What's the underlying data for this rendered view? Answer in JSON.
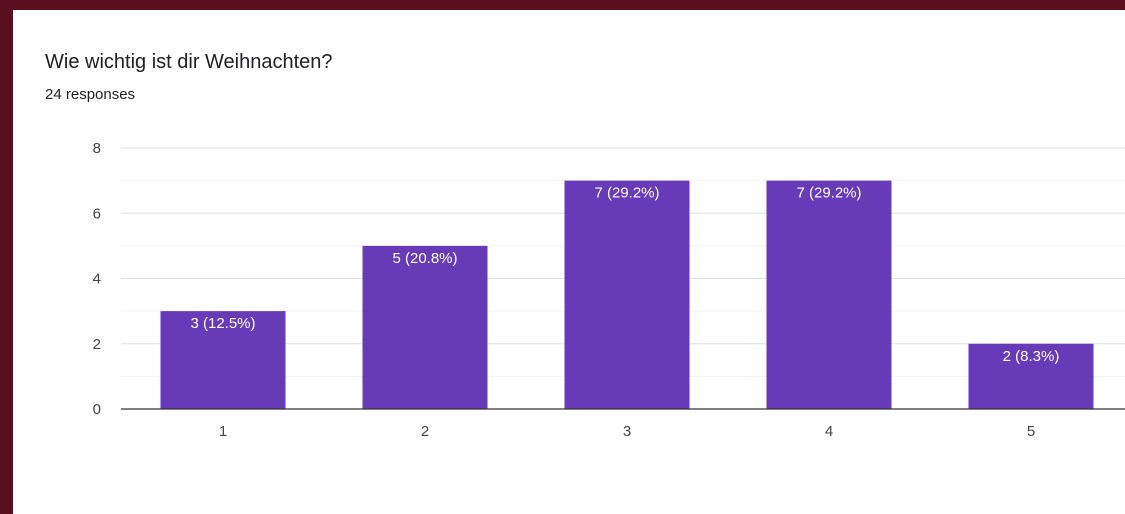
{
  "chart_data": {
    "type": "bar",
    "title": "Wie wichtig ist dir Weihnachten?",
    "subtitle": "24 responses",
    "categories": [
      "1",
      "2",
      "3",
      "4",
      "5"
    ],
    "values": [
      3,
      5,
      7,
      7,
      2
    ],
    "data_labels": [
      "3 (12.5%)",
      "5 (20.8%)",
      "7 (29.2%)",
      "7 (29.2%)",
      "2 (8.3%)"
    ],
    "y_ticks": [
      "0",
      "2",
      "4",
      "6",
      "8"
    ],
    "ylim": [
      0,
      8
    ],
    "grid": true,
    "bar_color": "#673ab7",
    "legend": "none"
  }
}
